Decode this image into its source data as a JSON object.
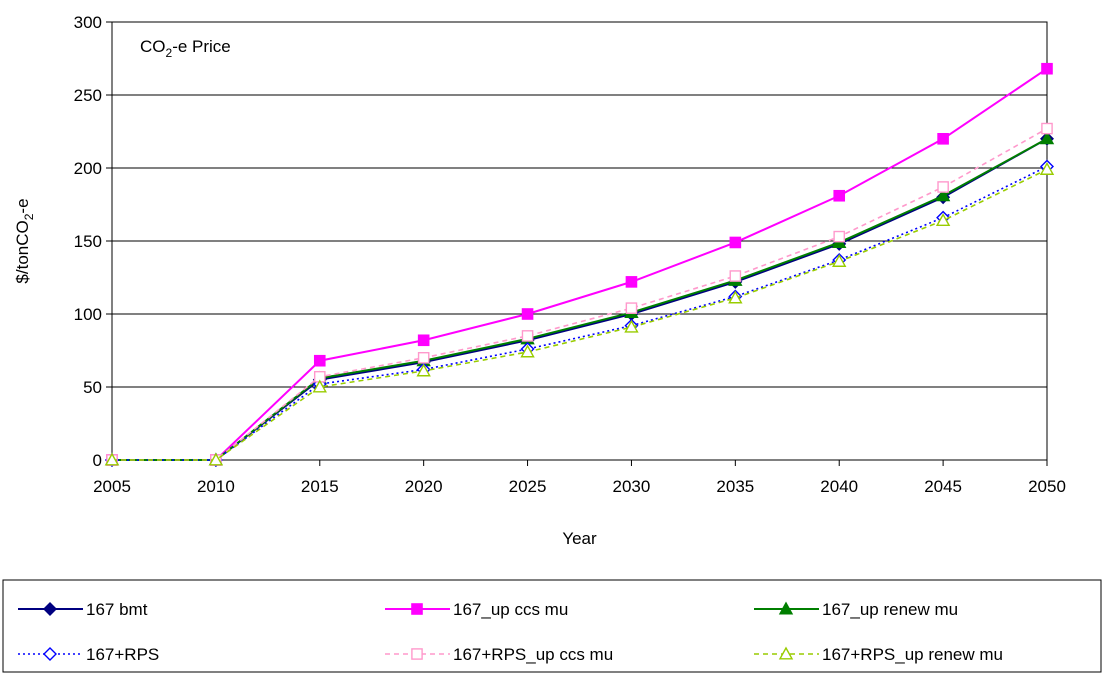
{
  "chart_data": {
    "type": "line",
    "annotation": {
      "base": "CO",
      "sub": "2",
      "rest": "-e Price"
    },
    "xlabel": "Year",
    "ylabel": {
      "base": "$/tonCO",
      "sub": "2",
      "rest": "-e"
    },
    "x": [
      2005,
      2010,
      2015,
      2020,
      2025,
      2030,
      2035,
      2040,
      2045,
      2050
    ],
    "xticks": [
      "2005",
      "2010",
      "2015",
      "2020",
      "2025",
      "2030",
      "2035",
      "2040",
      "2045",
      "2050"
    ],
    "ylim": [
      0,
      300
    ],
    "yticks": [
      "0",
      "50",
      "100",
      "150",
      "200",
      "250",
      "300"
    ],
    "grid": "horizontal",
    "legend_position": "bottom",
    "series": [
      {
        "name": "167 bmt",
        "color": "#000080",
        "dash": "solid",
        "marker": "diamond-filled",
        "values": [
          0,
          0,
          55,
          67,
          82,
          100,
          122,
          148,
          180,
          220
        ]
      },
      {
        "name": "167_up ccs mu",
        "color": "#FF00FF",
        "dash": "solid",
        "marker": "square-filled",
        "values": [
          0,
          0,
          68,
          82,
          100,
          122,
          149,
          181,
          220,
          268
        ]
      },
      {
        "name": "167_up renew mu",
        "color": "#007F00",
        "dash": "solid",
        "marker": "triangle-filled",
        "values": [
          0,
          0,
          56,
          68,
          83,
          101,
          123,
          149,
          181,
          220
        ]
      },
      {
        "name": "167+RPS",
        "color": "#0000FF",
        "dash": "dotted",
        "marker": "diamond-open",
        "values": [
          0,
          0,
          52,
          62,
          76,
          92,
          112,
          137,
          166,
          201
        ]
      },
      {
        "name": "167+RPS_up ccs mu",
        "color": "#FF99CC",
        "dash": "dashed",
        "marker": "square-open",
        "values": [
          0,
          0,
          57,
          70,
          85,
          104,
          126,
          153,
          187,
          227
        ]
      },
      {
        "name": "167+RPS_up renew mu",
        "color": "#99CC00",
        "dash": "dashed",
        "marker": "triangle-open",
        "values": [
          0,
          0,
          50,
          61,
          74,
          91,
          111,
          136,
          164,
          199
        ]
      }
    ]
  }
}
